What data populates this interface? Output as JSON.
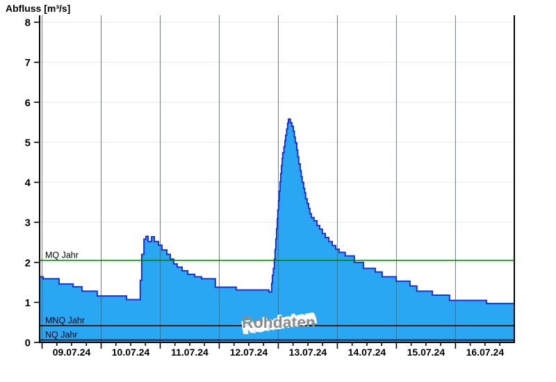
{
  "title": "Abfluss [m³/s]",
  "watermark": "Rohdaten",
  "chart_data": {
    "type": "area",
    "title": "Abfluss [m³/s]",
    "series_name": "Abfluss Rohdaten",
    "x_unit": "hours from axis start (axis spans 8 days, 09.07.24 - 16.07.24)",
    "x_range_hours": [
      0,
      192.9
    ],
    "ylim": [
      0,
      8.2
    ],
    "y_ticks": [
      0,
      1,
      2,
      3,
      4,
      5,
      6,
      7,
      8
    ],
    "day_boundaries_hours": [
      1,
      25,
      49,
      73,
      97,
      121,
      145,
      169
    ],
    "x_labels": [
      {
        "center_hour": 13,
        "label": "09.07.24"
      },
      {
        "center_hour": 37,
        "label": "10.07.24"
      },
      {
        "center_hour": 61,
        "label": "11.07.24"
      },
      {
        "center_hour": 85,
        "label": "12.07.24"
      },
      {
        "center_hour": 109,
        "label": "13.07.24"
      },
      {
        "center_hour": 133,
        "label": "14.07.24"
      },
      {
        "center_hour": 157,
        "label": "15.07.24"
      },
      {
        "center_hour": 181,
        "label": "16.07.24"
      }
    ],
    "minor_tick_interval_hours": 6,
    "grid": {
      "horizontal": true,
      "vertical_day_lines": true
    },
    "reference_lines": [
      {
        "name": "mq-line",
        "label": "MQ Jahr",
        "value": 2.05,
        "color": "#008000"
      },
      {
        "name": "mnq-line",
        "label": "MNQ Jahr",
        "value": 0.42,
        "color": "#000000"
      },
      {
        "name": "nq-line",
        "label": "NQ Jahr",
        "value": 0.06,
        "color": "#000000"
      }
    ],
    "steps": [
      [
        0,
        1.64
      ],
      [
        1.4,
        1.59
      ],
      [
        7.9,
        1.46
      ],
      [
        13.6,
        1.39
      ],
      [
        17.2,
        1.28
      ],
      [
        23.4,
        1.16
      ],
      [
        35.3,
        1.07
      ],
      [
        40.9,
        1.55
      ],
      [
        41.5,
        2.2
      ],
      [
        42.4,
        2.58
      ],
      [
        43.2,
        2.65
      ],
      [
        44.1,
        2.52
      ],
      [
        45.5,
        2.64
      ],
      [
        46.6,
        2.52
      ],
      [
        48.3,
        2.43
      ],
      [
        49.7,
        2.31
      ],
      [
        51.7,
        2.2
      ],
      [
        53.1,
        2.08
      ],
      [
        54.5,
        1.96
      ],
      [
        55.9,
        1.88
      ],
      [
        57.9,
        1.79
      ],
      [
        60.2,
        1.7
      ],
      [
        63,
        1.64
      ],
      [
        65.8,
        1.59
      ],
      [
        71.4,
        1.38
      ],
      [
        79.9,
        1.31
      ],
      [
        93.2,
        1.26
      ],
      [
        94.3,
        1.48
      ],
      [
        94.6,
        1.68
      ],
      [
        95,
        1.85
      ],
      [
        95.4,
        2.08
      ],
      [
        95.7,
        2.32
      ],
      [
        96,
        2.58
      ],
      [
        96.3,
        2.84
      ],
      [
        96.6,
        3.09
      ],
      [
        96.8,
        3.31
      ],
      [
        97.1,
        3.54
      ],
      [
        97.4,
        3.78
      ],
      [
        97.7,
        4.01
      ],
      [
        98,
        4.22
      ],
      [
        98.3,
        4.42
      ],
      [
        98.6,
        4.6
      ],
      [
        98.8,
        4.74
      ],
      [
        99.3,
        4.89
      ],
      [
        99.7,
        5.04
      ],
      [
        100,
        5.18
      ],
      [
        100.4,
        5.33
      ],
      [
        100.8,
        5.48
      ],
      [
        101.1,
        5.58
      ],
      [
        101.9,
        5.49
      ],
      [
        102.5,
        5.4
      ],
      [
        103.1,
        5.28
      ],
      [
        103.5,
        5.13
      ],
      [
        103.9,
        4.99
      ],
      [
        104.5,
        4.81
      ],
      [
        104.9,
        4.64
      ],
      [
        105.3,
        4.46
      ],
      [
        105.9,
        4.29
      ],
      [
        106.3,
        4.14
      ],
      [
        106.7,
        4
      ],
      [
        107.3,
        3.85
      ],
      [
        107.7,
        3.74
      ],
      [
        108.1,
        3.59
      ],
      [
        108.7,
        3.47
      ],
      [
        109.3,
        3.35
      ],
      [
        109.8,
        3.22
      ],
      [
        110.4,
        3.12
      ],
      [
        111.5,
        3.04
      ],
      [
        112.7,
        2.92
      ],
      [
        113.8,
        2.83
      ],
      [
        114.9,
        2.72
      ],
      [
        116.1,
        2.62
      ],
      [
        117.5,
        2.52
      ],
      [
        118.9,
        2.42
      ],
      [
        120.3,
        2.33
      ],
      [
        121.7,
        2.25
      ],
      [
        124.2,
        2.16
      ],
      [
        127.9,
        2
      ],
      [
        131.6,
        1.85
      ],
      [
        136.4,
        1.76
      ],
      [
        139.2,
        1.64
      ],
      [
        144.9,
        1.53
      ],
      [
        150.5,
        1.41
      ],
      [
        153.3,
        1.28
      ],
      [
        159.6,
        1.18
      ],
      [
        166.6,
        1.05
      ],
      [
        181.6,
        0.97
      ]
    ],
    "colors": {
      "area_fill": "#2aa7f2",
      "area_stroke": "#1c2fd6",
      "mq_line": "#008000",
      "ref_black": "#000000",
      "h_grid": "#e9e9e9",
      "v_grid": "#51626e",
      "axis": "#000000",
      "watermark_text": "#8c8c8c",
      "watermark_halo": "#ffffff"
    },
    "legend": null
  }
}
